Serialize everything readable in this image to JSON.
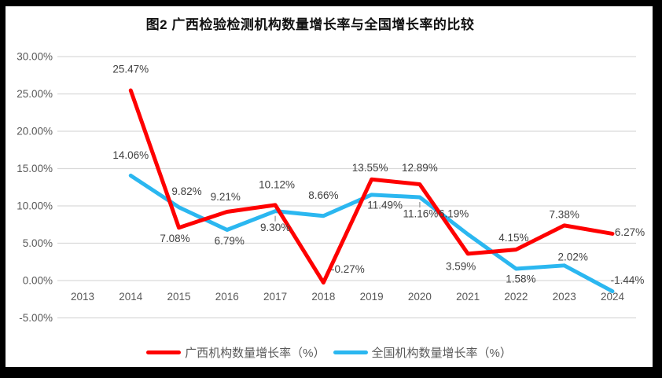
{
  "chart_data": {
    "type": "line",
    "title": "图2 广西检验检测机构数量增长率与全国增长率的比较",
    "categories": [
      "2013",
      "2014",
      "2015",
      "2016",
      "2017",
      "2018",
      "2019",
      "2020",
      "2021",
      "2022",
      "2023",
      "2024"
    ],
    "series": [
      {
        "id": "national",
        "name": "全国机构数量增长率（%）",
        "color": "#2bb7f0",
        "values": [
          null,
          14.06,
          9.82,
          6.79,
          9.3,
          8.66,
          11.49,
          11.16,
          6.19,
          1.58,
          2.02,
          -1.44
        ],
        "label_offsets": [
          null,
          [
            0,
            -26
          ],
          [
            10,
            -20
          ],
          [
            3,
            14
          ],
          [
            0,
            21
          ],
          [
            0,
            -26
          ],
          [
            17,
            13
          ],
          [
            1,
            21
          ],
          [
            -18,
            -26
          ],
          [
            6,
            13
          ],
          [
            11,
            -11
          ],
          [
            19,
            -14
          ]
        ]
      },
      {
        "id": "guangxi",
        "name": "广西机构数量增长率（%）",
        "color": "#fe0000",
        "values": [
          null,
          25.47,
          7.08,
          9.21,
          10.12,
          -0.27,
          13.55,
          12.89,
          3.59,
          4.15,
          7.38,
          6.27
        ],
        "label_offsets": [
          null,
          [
            0,
            -27
          ],
          [
            -5,
            14
          ],
          [
            -2,
            -19
          ],
          [
            2,
            -26
          ],
          [
            31,
            -17
          ],
          [
            -2,
            -15
          ],
          [
            0,
            -21
          ],
          [
            -9,
            16
          ],
          [
            -3,
            -15
          ],
          [
            0,
            -14
          ],
          [
            22,
            -2
          ]
        ]
      }
    ],
    "legend_order": [
      "guangxi",
      "national"
    ],
    "y_axis": {
      "min": -5,
      "max": 30,
      "step": 5,
      "tick_format_decimals": 2,
      "tick_suffix": "%"
    },
    "data_label_format_decimals": 2,
    "data_label_suffix": "%",
    "grid": true,
    "legend_position": "bottom",
    "leader_ticks": [
      {
        "series_id": "national",
        "category_index": 4
      },
      {
        "series_id": "national",
        "category_index": 7
      }
    ]
  },
  "colors": {
    "gridline": "#d9d9d9",
    "axis_text": "#595959",
    "data_label_text": "#404040",
    "leader_tick": "#a6a6a6",
    "frame": "#000000",
    "background": "#ffffff"
  }
}
